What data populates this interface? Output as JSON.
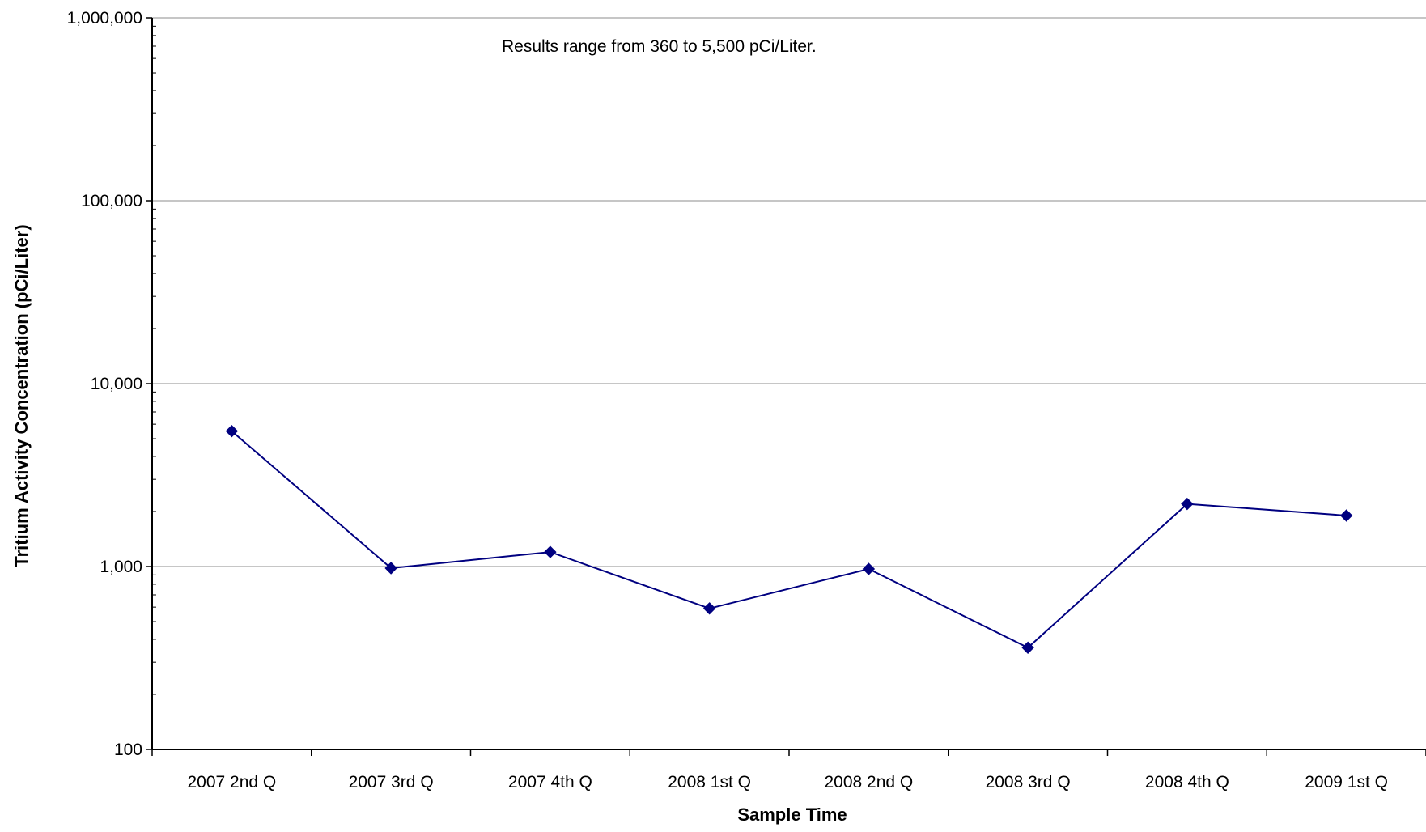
{
  "chart_data": {
    "type": "line",
    "title": "",
    "annotation": "Results range from  360  to 5,500 pCi/Liter.",
    "xlabel": "Sample Time",
    "ylabel": "Tritium Activity Concentration (pCi/Liter)",
    "y_scale": "log",
    "ylim": [
      100,
      1000000
    ],
    "y_ticks": [
      100,
      1000,
      10000,
      100000,
      1000000
    ],
    "y_tick_labels": [
      "100",
      "1,000",
      "10,000",
      "100,000",
      "1,000,000"
    ],
    "grid": "horizontal major lines",
    "legend": "none",
    "categories": [
      "2007 2nd Q",
      "2007 3rd Q",
      "2007 4th Q",
      "2008 1st Q",
      "2008 2nd Q",
      "2008 3rd Q",
      "2008 4th Q",
      "2009 1st Q"
    ],
    "series": [
      {
        "values": [
          5500,
          980,
          1200,
          590,
          970,
          360,
          2200,
          1900
        ],
        "color": "#000080",
        "marker": "diamond"
      }
    ]
  }
}
